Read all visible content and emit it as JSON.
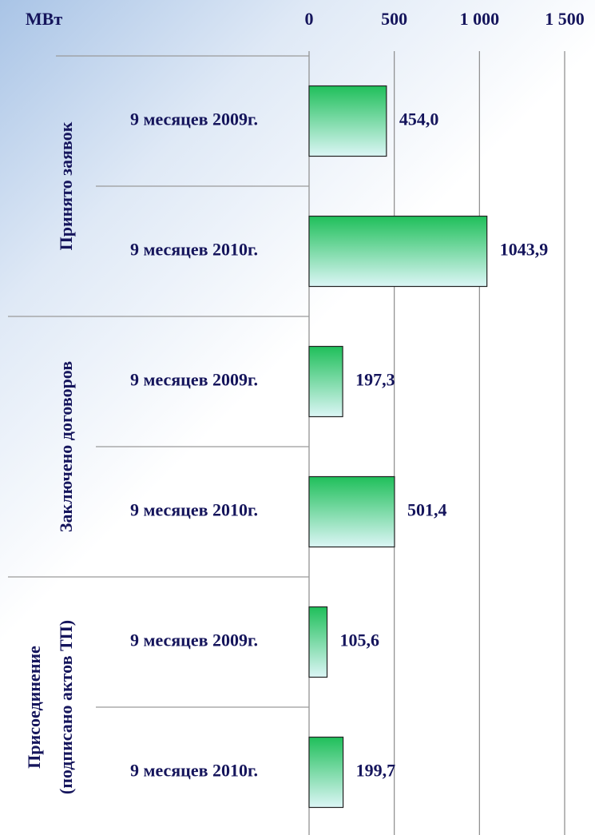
{
  "chart_data": {
    "type": "bar",
    "orientation": "horizontal",
    "unit_label": "МВт",
    "categories": [
      "9 месяцев 2009г.",
      "9 месяцев 2010г.",
      "9 месяцев 2009г.",
      "9 месяцев 2010г.",
      "9 месяцев 2009г.",
      "9 месяцев 2010г."
    ],
    "group_labels": [
      [
        "Принято заявок"
      ],
      [
        "Заключено договоров"
      ],
      [
        "Присоединение",
        "(подписано актов ТП)"
      ]
    ],
    "values": [
      454.0,
      1043.9,
      197.3,
      501.4,
      105.6,
      199.7
    ],
    "value_labels": [
      "454,0",
      "1043,9",
      "197,3",
      "501,4",
      "105,6",
      "199,7"
    ],
    "color_top": "#1fbf5a",
    "color_bottom": "#dcf6f6",
    "xlim": [
      0,
      1500
    ],
    "xticks": [
      0,
      500,
      {
        "value": 1000,
        "label": "1 000"
      },
      {
        "value": 1500,
        "label": "1 500"
      }
    ],
    "grid": true
  }
}
